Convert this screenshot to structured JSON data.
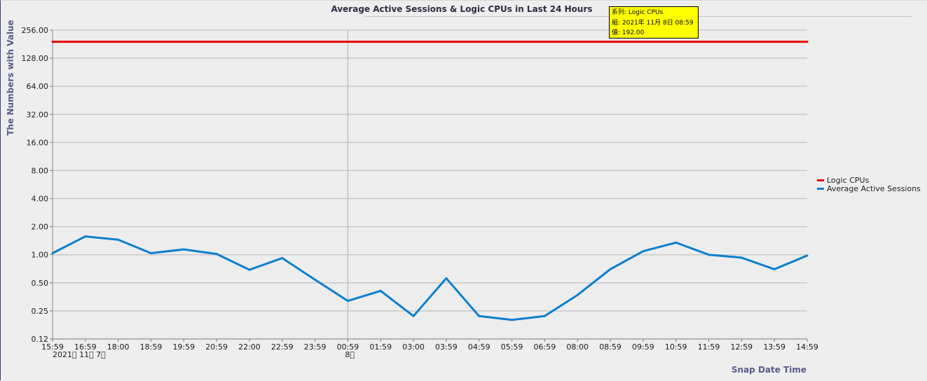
{
  "window": {
    "title": "Average Active Sessions & Logic CPUs in Last 24 Hours",
    "y_axis_title": "The Numbers with Value",
    "x_axis_title": "Snap Date Time"
  },
  "date_labels": [
    "2021\u0000 11\u0000 7\u0000",
    "8\u0000"
  ],
  "tooltip": {
    "series_line": "系列: Logic CPUs",
    "group_line": "組: 2021年 11月 8日 08:59",
    "value_line": "値: 192.00"
  },
  "chart_data": {
    "type": "line",
    "title": "Average Active Sessions & Logic CPUs in Last 24 Hours",
    "xlabel": "Snap Date Time",
    "ylabel": "The Numbers with Value",
    "yscale": "log2",
    "ylim": [
      0.125,
      256
    ],
    "y_ticks": [
      0.125,
      0.25,
      0.5,
      1,
      2,
      4,
      8,
      16,
      32,
      64,
      128,
      256
    ],
    "y_tick_labels": [
      "0.12",
      "0.25",
      "0.50",
      "1.00",
      "2.00",
      "4.00",
      "8.00",
      "16.00",
      "32.00",
      "64.00",
      "128.00",
      "256.00"
    ],
    "categories": [
      "15:59",
      "16:59",
      "18:00",
      "18:59",
      "19:59",
      "20:59",
      "22:00",
      "22:59",
      "23:59",
      "00:59",
      "01:59",
      "03:00",
      "03:59",
      "04:59",
      "05:59",
      "06:59",
      "08:00",
      "08:59",
      "09:59",
      "10:59",
      "11:59",
      "12:59",
      "13:59",
      "14:59"
    ],
    "day_break_category": "00:59",
    "grid": true,
    "legend_position": "right",
    "series": [
      {
        "name": "Logic CPUs",
        "color": "#e60000",
        "values": [
          192,
          192,
          192,
          192,
          192,
          192,
          192,
          192,
          192,
          192,
          192,
          192,
          192,
          192,
          192,
          192,
          192,
          192,
          192,
          192,
          192,
          192,
          192,
          192
        ]
      },
      {
        "name": "Average Active Sessions",
        "color": "#0a7fcf",
        "values": [
          1.04,
          1.57,
          1.45,
          1.04,
          1.14,
          1.02,
          0.69,
          0.92,
          0.54,
          0.32,
          0.41,
          0.22,
          0.56,
          0.22,
          0.2,
          0.22,
          0.37,
          0.7,
          1.09,
          1.35,
          1.0,
          0.93,
          0.7,
          0.98
        ]
      }
    ]
  }
}
